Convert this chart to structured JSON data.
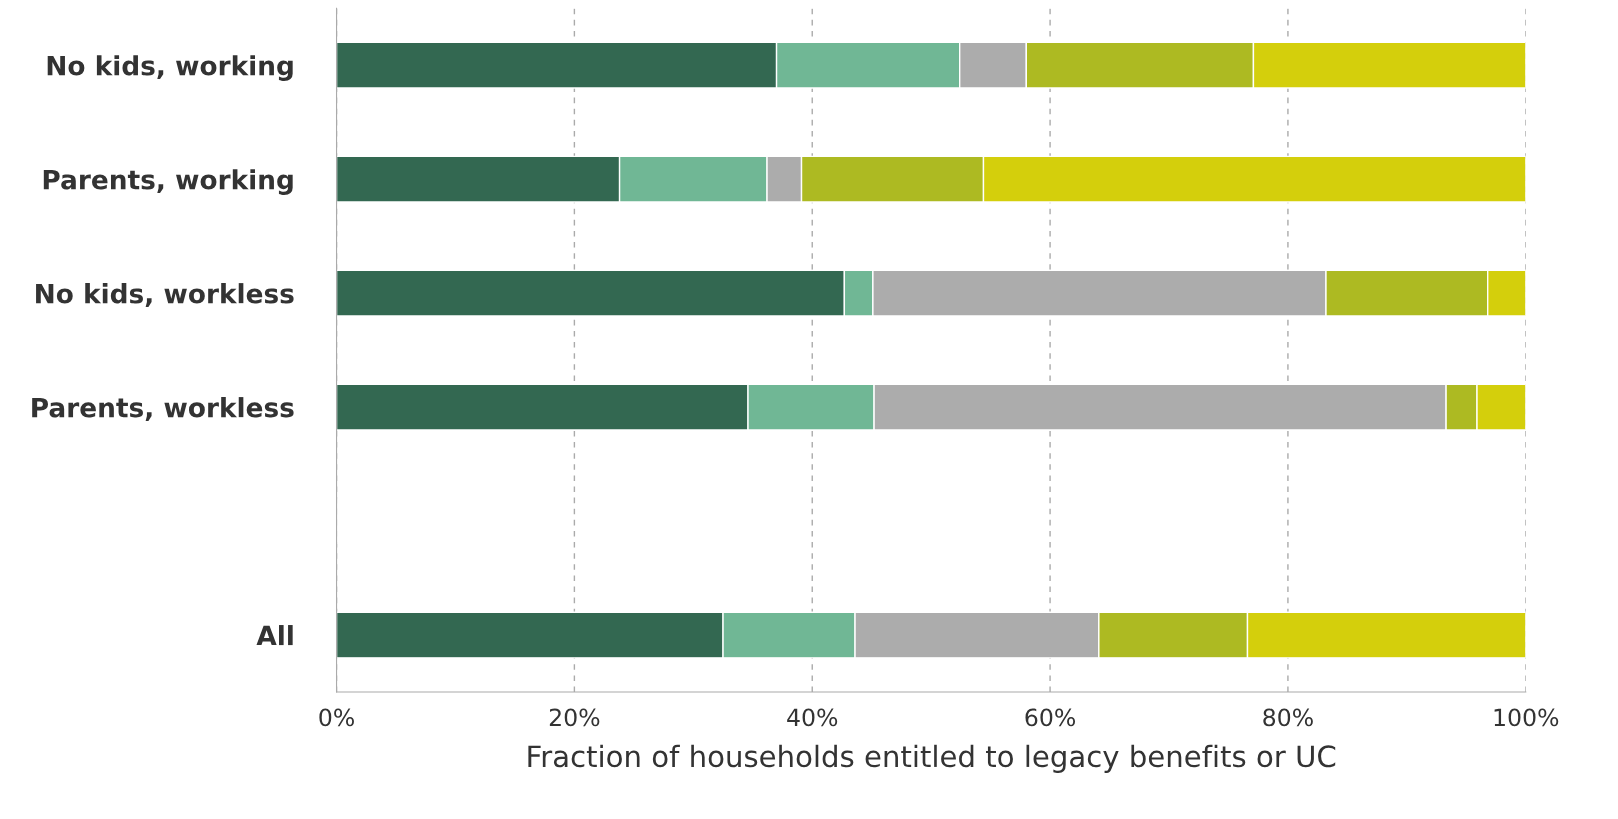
{
  "chart_data": {
    "type": "bar",
    "orientation": "horizontal",
    "stacked": true,
    "xlabel": "Fraction of households entitled to legacy benefits or UC",
    "categories": [
      "No kids, working",
      "Parents, working",
      "No kids, workless",
      "Parents, workless",
      null,
      "All"
    ],
    "series": [
      {
        "color": "#336851",
        "values": [
          37.0,
          23.8,
          42.7,
          34.6,
          null,
          32.5
        ]
      },
      {
        "color": "#70b795",
        "values": [
          15.4,
          12.4,
          2.4,
          10.6,
          null,
          11.1
        ]
      },
      {
        "color": "#acacac",
        "values": [
          5.6,
          2.9,
          38.1,
          48.1,
          null,
          20.5
        ]
      },
      {
        "color": "#adba22",
        "values": [
          19.1,
          15.3,
          13.6,
          2.6,
          null,
          12.5
        ]
      },
      {
        "color": "#d4cf0c",
        "values": [
          22.9,
          45.6,
          3.2,
          4.1,
          null,
          23.4
        ]
      }
    ],
    "xlim": [
      0,
      100
    ],
    "xticks": [
      {
        "value": 0,
        "label": "0%"
      },
      {
        "value": 20,
        "label": "20%"
      },
      {
        "value": 40,
        "label": "40%"
      },
      {
        "value": 60,
        "label": "60%"
      },
      {
        "value": 80,
        "label": "80%"
      },
      {
        "value": 100,
        "label": "100%"
      }
    ],
    "grid": "x",
    "legend": false
  }
}
